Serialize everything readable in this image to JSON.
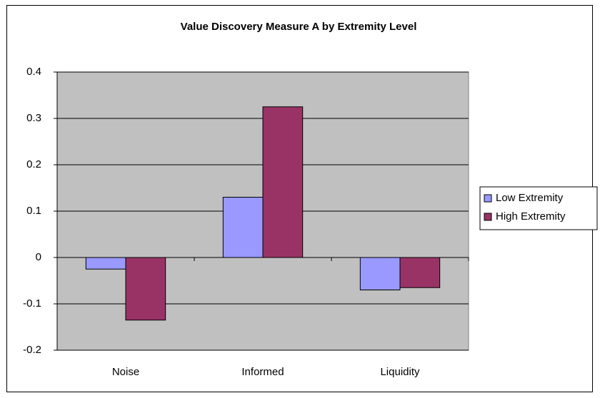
{
  "chart_data": {
    "type": "bar",
    "title": "Value Discovery Measure A by Extremity Level",
    "categories": [
      "Noise",
      "Informed",
      "Liquidity"
    ],
    "series": [
      {
        "name": "Low Extremity",
        "color": "#9999ff",
        "values": [
          -0.025,
          0.13,
          -0.07
        ]
      },
      {
        "name": "High Extremity",
        "color": "#993366",
        "values": [
          -0.135,
          0.325,
          -0.065
        ]
      }
    ],
    "ylim": [
      -0.2,
      0.4
    ],
    "yticks": [
      -0.2,
      -0.1,
      0,
      0.1,
      0.2,
      0.3,
      0.4
    ],
    "grid": true,
    "legend": "right",
    "plot_background": "#c0c0c0"
  }
}
